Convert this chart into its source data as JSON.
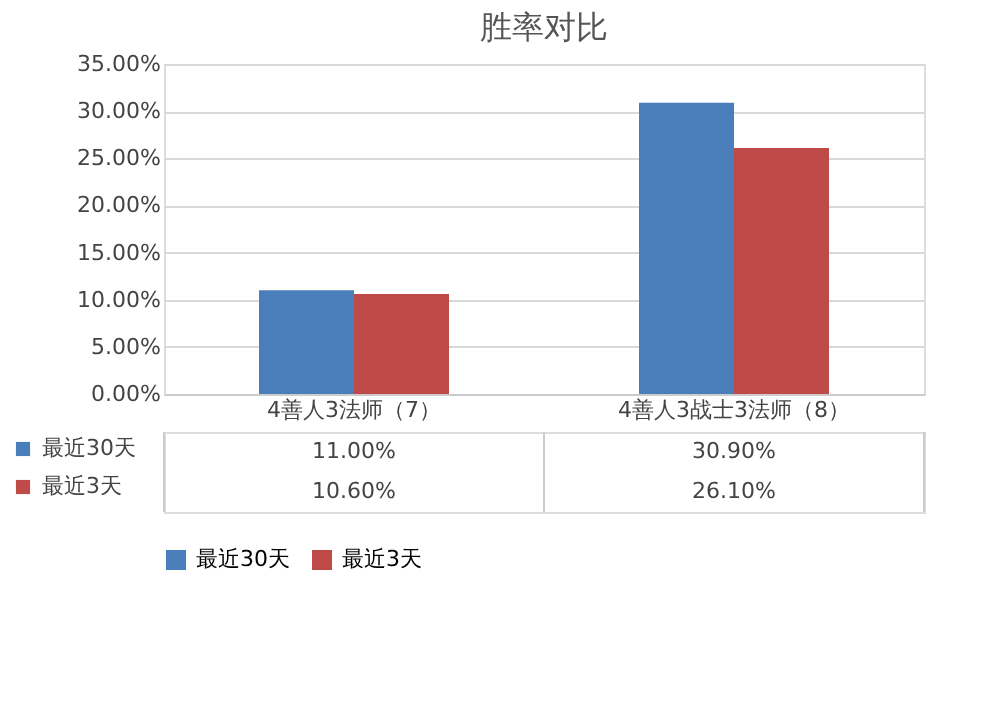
{
  "chart_data": {
    "type": "bar",
    "title": "胜率对比",
    "categories": [
      "4善人3法师（7）",
      "4善人3战士3法师（8）"
    ],
    "series": [
      {
        "name": "最近30天",
        "color": "#4a7ebb",
        "values": [
          11.0,
          30.9
        ],
        "value_labels": [
          "11.00%",
          "30.90%"
        ]
      },
      {
        "name": "最近3天",
        "color": "#be4b48",
        "values": [
          10.6,
          26.1
        ],
        "value_labels": [
          "10.60%",
          "26.10%"
        ]
      }
    ],
    "ylim": [
      0,
      35
    ],
    "yticks": [
      {
        "value": 0,
        "label": "0.00%"
      },
      {
        "value": 5,
        "label": "5.00%"
      },
      {
        "value": 10,
        "label": "10.00%"
      },
      {
        "value": 15,
        "label": "15.00%"
      },
      {
        "value": 20,
        "label": "20.00%"
      },
      {
        "value": 25,
        "label": "25.00%"
      },
      {
        "value": 30,
        "label": "30.00%"
      },
      {
        "value": 35,
        "label": "35.00%"
      }
    ],
    "grid": "y",
    "legend": "bottom"
  }
}
